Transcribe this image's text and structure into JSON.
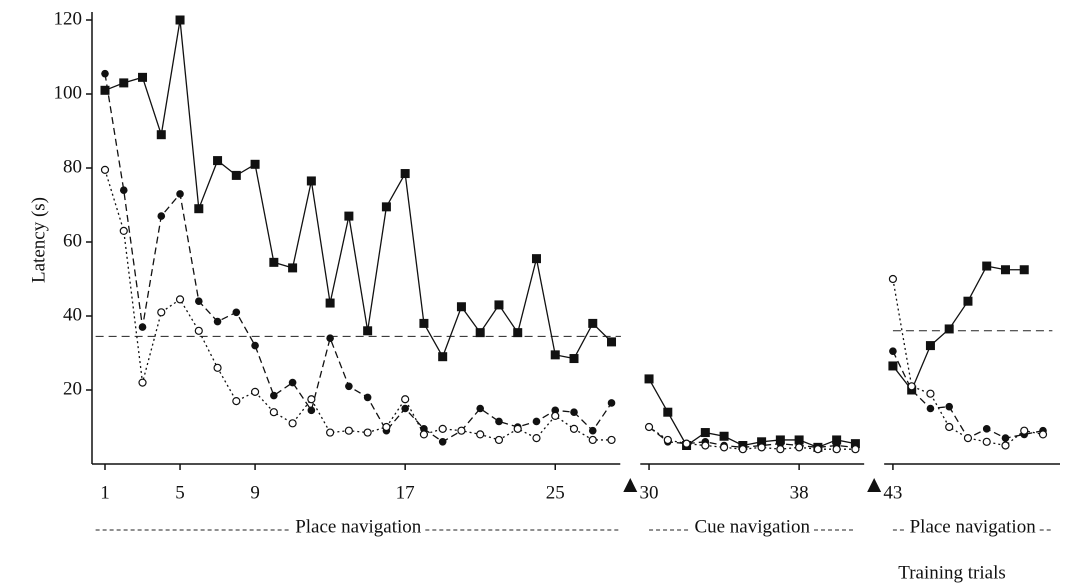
{
  "chart_data": {
    "type": "line",
    "ylabel": "Latency (s)",
    "xlabel": "Training trials",
    "x": [
      1,
      2,
      3,
      4,
      5,
      6,
      7,
      8,
      9,
      10,
      11,
      12,
      13,
      14,
      15,
      16,
      17,
      18,
      19,
      20,
      21,
      22,
      23,
      24,
      25,
      26,
      27,
      28,
      29,
      30,
      31,
      32,
      33,
      34,
      35,
      36,
      37,
      38,
      39,
      40,
      41,
      42,
      43,
      44,
      45,
      46,
      47,
      48,
      49,
      50,
      51
    ],
    "series": [
      {
        "color": "#111",
        "marker": "square",
        "dash": "solid",
        "values": [
          101,
          103,
          104.5,
          89,
          120,
          69,
          82,
          78,
          81,
          54.5,
          53,
          76.5,
          43.5,
          67,
          36,
          69.5,
          78.5,
          38,
          29,
          42.5,
          35.5,
          43,
          35.5,
          55.5,
          29.5,
          28.5,
          38,
          33,
          null,
          23,
          14,
          5,
          8.5,
          7.5,
          5,
          6,
          6.5,
          6.5,
          4.5,
          6.5,
          5.5,
          null,
          26.5,
          20,
          32,
          36.5,
          44,
          53.5,
          52.5,
          52.5,
          null
        ]
      },
      {
        "color": "#111",
        "marker": "filled-circle",
        "dash": "dashed",
        "values": [
          105.5,
          74,
          37,
          67,
          73,
          44,
          38.5,
          41,
          32,
          18.5,
          22,
          14.5,
          34,
          21,
          18,
          9,
          15,
          9.5,
          6,
          9,
          15,
          11.5,
          10,
          11.5,
          14.5,
          14,
          9,
          16.5,
          null,
          10,
          6,
          5.5,
          6,
          5,
          4.5,
          5,
          5.5,
          5,
          4.5,
          5,
          4.5,
          null,
          30.5,
          20,
          15,
          15.5,
          7,
          9.5,
          7,
          8,
          9
        ]
      },
      {
        "color": "#111",
        "marker": "open-circle",
        "dash": "dotted",
        "values": [
          79.5,
          63,
          22,
          41,
          44.5,
          36,
          26,
          17,
          19.5,
          14,
          11,
          17.5,
          8.5,
          9,
          8.5,
          10,
          17.5,
          8,
          9.5,
          9,
          8,
          6.5,
          9.5,
          7,
          13,
          9.5,
          6.5,
          6.5,
          null,
          10,
          6.5,
          5.5,
          5,
          4.5,
          4,
          4.5,
          4,
          4.5,
          4,
          4,
          4,
          null,
          50,
          21,
          19,
          10,
          7,
          6,
          5,
          9,
          8
        ]
      }
    ],
    "reference_lines": [
      {
        "value": 34.5,
        "x": [
          0.5,
          28.5
        ]
      },
      {
        "value": 36,
        "x": [
          43,
          51.5
        ]
      }
    ],
    "phases": [
      {
        "label": "Place navigation",
        "x": [
          0.5,
          28.5
        ]
      },
      {
        "label": "Cue navigation",
        "x": [
          30,
          41
        ]
      },
      {
        "label": "Place navigation",
        "x": [
          43,
          51.5
        ]
      }
    ],
    "breaks": [
      29,
      42
    ],
    "xlim": [
      0.3,
      52
    ],
    "ylim": [
      0,
      120
    ],
    "xticks": [
      1,
      5,
      9,
      17,
      25,
      30,
      38,
      43
    ],
    "yticks": [
      20,
      40,
      60,
      80,
      100,
      120
    ]
  }
}
